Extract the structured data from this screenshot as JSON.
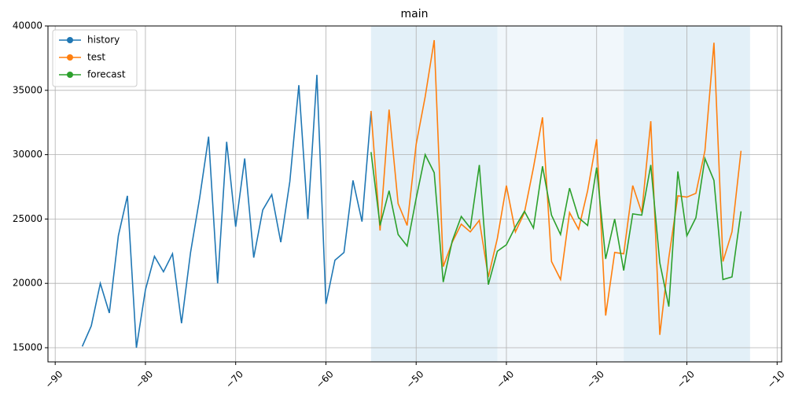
{
  "chart_data": {
    "type": "line",
    "title": "main",
    "xlim": [
      -90.8,
      -9.5
    ],
    "ylim": [
      13900,
      40000
    ],
    "xticks": [
      {
        "value": -90,
        "label": "−90"
      },
      {
        "value": -80,
        "label": "−80"
      },
      {
        "value": -70,
        "label": "−70"
      },
      {
        "value": -60,
        "label": "−60"
      },
      {
        "value": -50,
        "label": "−50"
      },
      {
        "value": -40,
        "label": "−40"
      },
      {
        "value": -30,
        "label": "−30"
      },
      {
        "value": -20,
        "label": "−20"
      },
      {
        "value": -10,
        "label": "−10"
      }
    ],
    "yticks": [
      15000,
      20000,
      25000,
      30000,
      35000,
      40000
    ],
    "grid": true,
    "legend": "upper-left",
    "shaded_regions": [
      {
        "x": [
          -55,
          -41
        ],
        "color": "#e3f0f8"
      },
      {
        "x": [
          -41,
          -27
        ],
        "color": "#f1f7fb"
      },
      {
        "x": [
          -27,
          -13
        ],
        "color": "#e3f0f8"
      }
    ],
    "series": [
      {
        "name": "history",
        "color": "#1f77b4",
        "x": [
          -87,
          -86,
          -85,
          -84,
          -83,
          -82,
          -81,
          -80,
          -79,
          -78,
          -77,
          -76,
          -75,
          -74,
          -73,
          -72,
          -71,
          -70,
          -69,
          -68,
          -67,
          -66,
          -65,
          -64,
          -63,
          -62,
          -61,
          -60,
          -59,
          -58,
          -57,
          -56,
          -55
        ],
        "values": [
          15100,
          16700,
          20000,
          17700,
          23700,
          26800,
          15000,
          19500,
          22100,
          20900,
          22300,
          16900,
          22400,
          26600,
          31400,
          20000,
          31000,
          24400,
          29700,
          22000,
          25700,
          26900,
          23200,
          27900,
          35400,
          25000,
          36200,
          18400,
          21800,
          22400,
          28000,
          24800,
          33300
        ]
      },
      {
        "name": "test",
        "color": "#ff7f0e",
        "x": [
          -55,
          -54,
          -53,
          -52,
          -51,
          -50,
          -49,
          -48,
          -47,
          -46,
          -45,
          -44,
          -43,
          -42,
          -41,
          -40,
          -39,
          -38,
          -37,
          -36,
          -35,
          -34,
          -33,
          -32,
          -31,
          -30,
          -29,
          -28,
          -27,
          -26,
          -25,
          -24,
          -23,
          -22,
          -21,
          -20,
          -19,
          -18,
          -17,
          -16,
          -15,
          -14
        ],
        "values": [
          33400,
          24100,
          33500,
          26200,
          24500,
          30800,
          34500,
          38900,
          21300,
          23200,
          24600,
          24000,
          24900,
          20500,
          23500,
          27600,
          24000,
          25500,
          29000,
          32900,
          21700,
          20300,
          25500,
          24200,
          27200,
          31200,
          17500,
          22400,
          22300,
          27600,
          25500,
          32600,
          16000,
          22000,
          26800,
          26700,
          27000,
          30300,
          38700,
          21700,
          24000,
          30300
        ]
      },
      {
        "name": "forecast",
        "color": "#2ca02c",
        "x": [
          -55,
          -54,
          -53,
          -52,
          -51,
          -50,
          -49,
          -48,
          -47,
          -46,
          -45,
          -44,
          -43,
          -42,
          -41,
          -40,
          -39,
          -38,
          -37,
          -36,
          -35,
          -34,
          -33,
          -32,
          -31,
          -30,
          -29,
          -28,
          -27,
          -26,
          -25,
          -24,
          -23,
          -22,
          -21,
          -20,
          -19,
          -18,
          -17,
          -16,
          -15,
          -14
        ],
        "values": [
          30200,
          24500,
          27200,
          23800,
          22900,
          26600,
          30000,
          28600,
          20100,
          23300,
          25200,
          24300,
          29200,
          19900,
          22500,
          23000,
          24400,
          25600,
          24300,
          29100,
          25300,
          23800,
          27400,
          25100,
          24500,
          29000,
          21900,
          25000,
          21000,
          25400,
          25300,
          29200,
          21600,
          18200,
          28700,
          23700,
          25100,
          29700,
          28000,
          20300,
          20500,
          25600
        ]
      }
    ]
  }
}
